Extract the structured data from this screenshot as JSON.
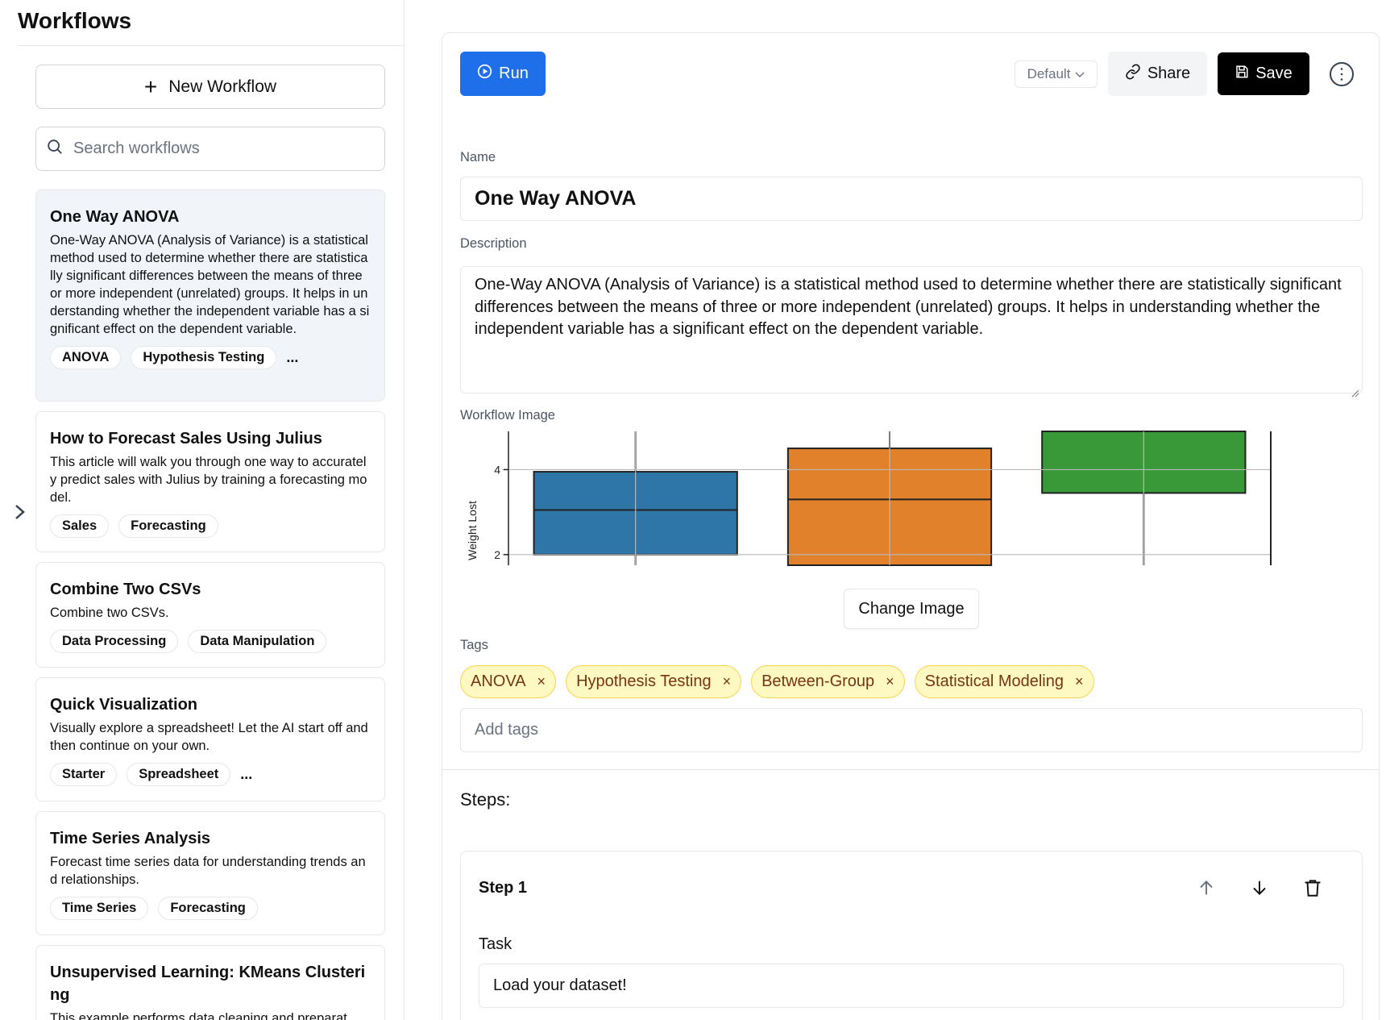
{
  "sidebar": {
    "title": "Workflows",
    "new_workflow_label": "New Workflow",
    "search_placeholder": "Search workflows",
    "items": [
      {
        "title": "One Way ANOVA",
        "description": "One-Way ANOVA (Analysis of Variance) is a statistical method used to determine whether there are statistically significant differences between the means of three or more independent (unrelated) groups. It helps in understanding whether the independent variable has a significant effect on the dependent variable.",
        "tags": [
          "ANOVA",
          "Hypothesis Testing"
        ],
        "more": "...",
        "active": true
      },
      {
        "title": "How to Forecast Sales Using Julius",
        "description": "This article will walk you through one way to accurately predict sales with Julius by training a forecasting model.",
        "tags": [
          "Sales",
          "Forecasting"
        ],
        "more": ""
      },
      {
        "title": "Combine Two CSVs",
        "description": "Combine two CSVs.",
        "tags": [
          "Data Processing",
          "Data Manipulation"
        ],
        "more": ""
      },
      {
        "title": "Quick Visualization",
        "description": "Visually explore a spreadsheet! Let the AI start off and then continue on your own.",
        "tags": [
          "Starter",
          "Spreadsheet"
        ],
        "more": "..."
      },
      {
        "title": "Time Series Analysis",
        "description": "Forecast time series data for understanding trends and relationships.",
        "tags": [
          "Time Series",
          "Forecasting"
        ],
        "more": ""
      },
      {
        "title": "Unsupervised Learning: KMeans Clustering",
        "description": "This example performs data cleaning and preparat"
      }
    ]
  },
  "toolbar": {
    "run_label": "Run",
    "model_select": "Default",
    "share_label": "Share",
    "save_label": "Save",
    "run_color": "#1f6feb"
  },
  "form": {
    "name_label": "Name",
    "name_value": "One Way ANOVA",
    "description_label": "Description",
    "description_value": "One-Way ANOVA (Analysis of Variance) is a statistical method used to determine whether there are statistically significant differences between the means of three or more independent (unrelated) groups. It helps in understanding whether the independent variable has a significant effect on the dependent variable.",
    "image_label": "Workflow Image",
    "change_image_label": "Change Image",
    "tags_label": "Tags",
    "tags": [
      "ANOVA",
      "Hypothesis Testing",
      "Between-Group",
      "Statistical Modeling"
    ],
    "tag_remove_glyph": "×",
    "add_tags_placeholder": "Add tags"
  },
  "steps": {
    "label": "Steps:",
    "items": [
      {
        "title": "Step 1",
        "task_label": "Task",
        "task_value": "Load your dataset!"
      }
    ]
  },
  "chart_data": {
    "type": "box",
    "ylabel": "Weight Lost",
    "yticks": [
      2,
      4
    ],
    "ylim": [
      1.75,
      4.9
    ],
    "grid": true,
    "series": [
      {
        "q1": 2.0,
        "median": 3.05,
        "q3": 3.95,
        "whisker_low": 1.75,
        "whisker_high": 4.9,
        "color": "#2e75a8"
      },
      {
        "q1": 1.75,
        "median": 3.3,
        "q3": 4.5,
        "whisker_low": 1.75,
        "whisker_high": 4.9,
        "color": "#e2812c"
      },
      {
        "q1": 3.45,
        "median": 4.9,
        "q3": 4.9,
        "whisker_low": 1.75,
        "whisker_high": 4.9,
        "color": "#399938"
      }
    ]
  }
}
